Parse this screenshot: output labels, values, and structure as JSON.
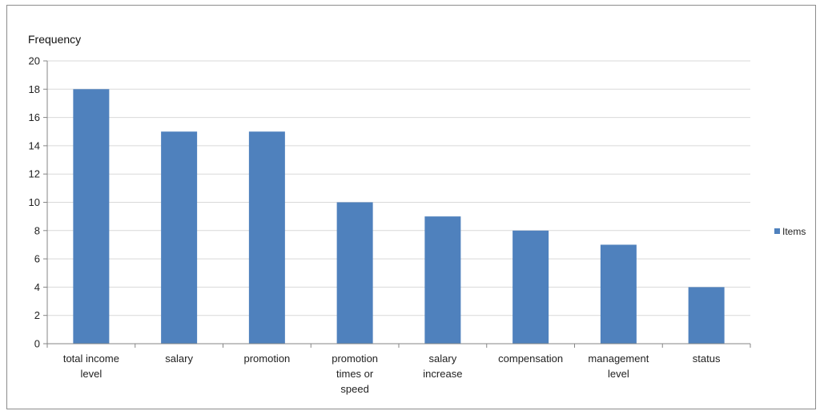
{
  "chart_data": {
    "type": "bar",
    "ylabel": "Frequency",
    "categories": [
      [
        "total income",
        "level"
      ],
      [
        "salary"
      ],
      [
        "promotion"
      ],
      [
        "promotion",
        "times or",
        "speed"
      ],
      [
        "salary",
        "increase"
      ],
      [
        "compensation"
      ],
      [
        "management",
        "level"
      ],
      [
        "status"
      ]
    ],
    "series": [
      {
        "name": "Items",
        "color": "#4f81bd",
        "values": [
          18,
          15,
          15,
          10,
          9,
          8,
          7,
          4
        ]
      }
    ],
    "ylim": [
      0,
      20
    ],
    "yticks": [
      0,
      2,
      4,
      6,
      8,
      10,
      12,
      14,
      16,
      18,
      20
    ],
    "grid": true,
    "legend": "right"
  }
}
